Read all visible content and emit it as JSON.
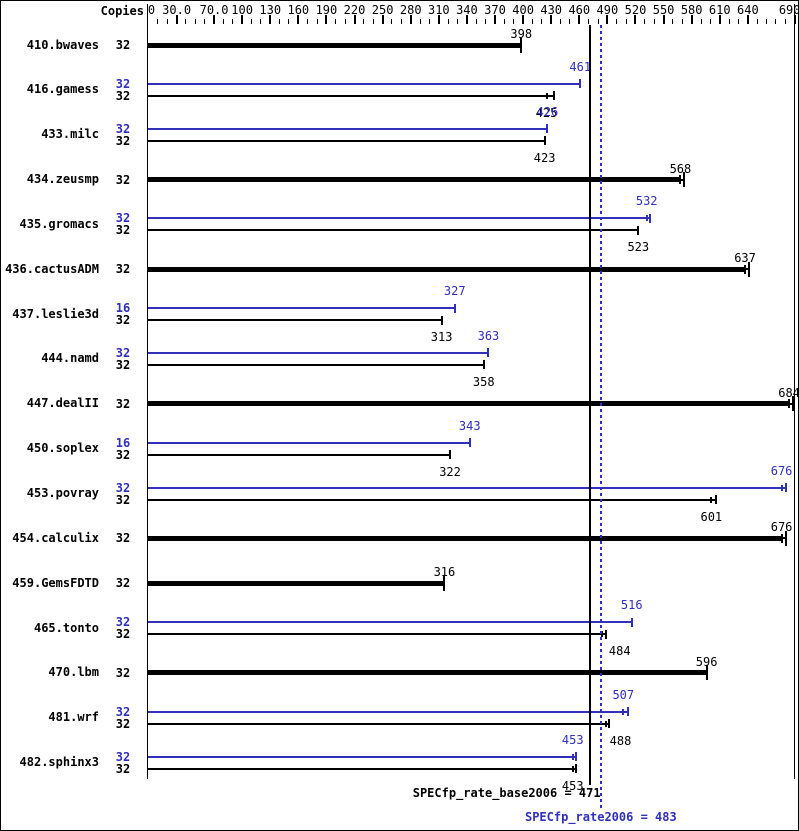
{
  "chart_data": {
    "type": "bar",
    "orientation": "horizontal",
    "copies_header": "Copies",
    "axis": {
      "min": 0,
      "max": 690,
      "minor_step": 10,
      "labels": [
        "0",
        "30.0",
        "70.0",
        "100",
        "130",
        "160",
        "190",
        "220",
        "250",
        "280",
        "310",
        "340",
        "370",
        "400",
        "430",
        "460",
        "490",
        "520",
        "550",
        "580",
        "610",
        "640",
        "690"
      ]
    },
    "series_colors": {
      "base": "#000000",
      "peak": "#3030b8"
    },
    "rows": [
      {
        "name": "410.bwaves",
        "bars": [
          {
            "kind": "base",
            "thick": true,
            "copies": "32",
            "value": 398,
            "marks": [
              398
            ]
          }
        ]
      },
      {
        "name": "416.gamess",
        "bars": [
          {
            "kind": "peak",
            "copies": "32",
            "value": 461,
            "marks": [
              461
            ]
          },
          {
            "kind": "base",
            "copies": "32",
            "value": 425,
            "marks": [
              425,
              433
            ]
          }
        ]
      },
      {
        "name": "433.milc",
        "bars": [
          {
            "kind": "peak",
            "copies": "32",
            "value": 426,
            "marks": [
              426
            ]
          },
          {
            "kind": "base",
            "copies": "32",
            "value": 423,
            "marks": [
              423
            ]
          }
        ]
      },
      {
        "name": "434.zeusmp",
        "bars": [
          {
            "kind": "base",
            "thick": true,
            "copies": "32",
            "value": 568,
            "marks": [
              568,
              572
            ]
          }
        ]
      },
      {
        "name": "435.gromacs",
        "bars": [
          {
            "kind": "peak",
            "copies": "32",
            "value": 532,
            "marks": [
              532,
              536
            ]
          },
          {
            "kind": "base",
            "copies": "32",
            "value": 523,
            "marks": [
              523
            ]
          }
        ]
      },
      {
        "name": "436.cactusADM",
        "bars": [
          {
            "kind": "base",
            "thick": true,
            "copies": "32",
            "value": 637,
            "marks": [
              637,
              641
            ]
          }
        ]
      },
      {
        "name": "437.leslie3d",
        "bars": [
          {
            "kind": "peak",
            "copies": "16",
            "value": 327,
            "marks": [
              327
            ]
          },
          {
            "kind": "base",
            "copies": "32",
            "value": 313,
            "marks": [
              313
            ]
          }
        ]
      },
      {
        "name": "444.namd",
        "bars": [
          {
            "kind": "peak",
            "copies": "32",
            "value": 363,
            "marks": [
              363
            ]
          },
          {
            "kind": "base",
            "copies": "32",
            "value": 358,
            "marks": [
              358
            ]
          }
        ]
      },
      {
        "name": "447.dealII",
        "bars": [
          {
            "kind": "base",
            "thick": true,
            "copies": "32",
            "value": 684,
            "marks": [
              684,
              688
            ]
          }
        ]
      },
      {
        "name": "450.soplex",
        "bars": [
          {
            "kind": "peak",
            "copies": "16",
            "value": 343,
            "marks": [
              343
            ]
          },
          {
            "kind": "base",
            "copies": "32",
            "value": 322,
            "marks": [
              322
            ]
          }
        ]
      },
      {
        "name": "453.povray",
        "bars": [
          {
            "kind": "peak",
            "copies": "32",
            "value": 676,
            "marks": [
              676,
              681
            ]
          },
          {
            "kind": "base",
            "copies": "32",
            "value": 601,
            "marks": [
              601,
              606
            ]
          }
        ]
      },
      {
        "name": "454.calculix",
        "bars": [
          {
            "kind": "base",
            "thick": true,
            "copies": "32",
            "value": 676,
            "marks": [
              676,
              681
            ]
          }
        ]
      },
      {
        "name": "459.GemsFDTD",
        "bars": [
          {
            "kind": "base",
            "thick": true,
            "copies": "32",
            "value": 316,
            "marks": [
              316
            ]
          }
        ]
      },
      {
        "name": "465.tonto",
        "bars": [
          {
            "kind": "peak",
            "copies": "32",
            "value": 516,
            "marks": [
              516
            ]
          },
          {
            "kind": "base",
            "copies": "32",
            "value": 484,
            "marks": [
              484,
              488
            ],
            "label_dx": 18
          }
        ]
      },
      {
        "name": "470.lbm",
        "bars": [
          {
            "kind": "base",
            "thick": true,
            "copies": "32",
            "value": 596,
            "marks": [
              596
            ]
          }
        ]
      },
      {
        "name": "481.wrf",
        "bars": [
          {
            "kind": "peak",
            "copies": "32",
            "value": 507,
            "marks": [
              507,
              512
            ]
          },
          {
            "kind": "base",
            "copies": "32",
            "value": 488,
            "marks": [
              488,
              492
            ],
            "label_dx": 15
          }
        ]
      },
      {
        "name": "482.sphinx3",
        "bars": [
          {
            "kind": "peak",
            "copies": "32",
            "value": 453,
            "marks": [
              453,
              457
            ]
          },
          {
            "kind": "base",
            "copies": "32",
            "value": 453,
            "marks": [
              453,
              457
            ]
          }
        ]
      }
    ],
    "reference_lines": [
      {
        "kind": "base",
        "value": 471,
        "style": "solid",
        "color": "#000000"
      },
      {
        "kind": "peak",
        "value": 483,
        "style": "dotted",
        "color": "#3030b8"
      }
    ],
    "footer": {
      "base_label": "SPECfp_rate_base2006 = 471",
      "peak_label": "SPECfp_rate2006 = 483"
    }
  }
}
